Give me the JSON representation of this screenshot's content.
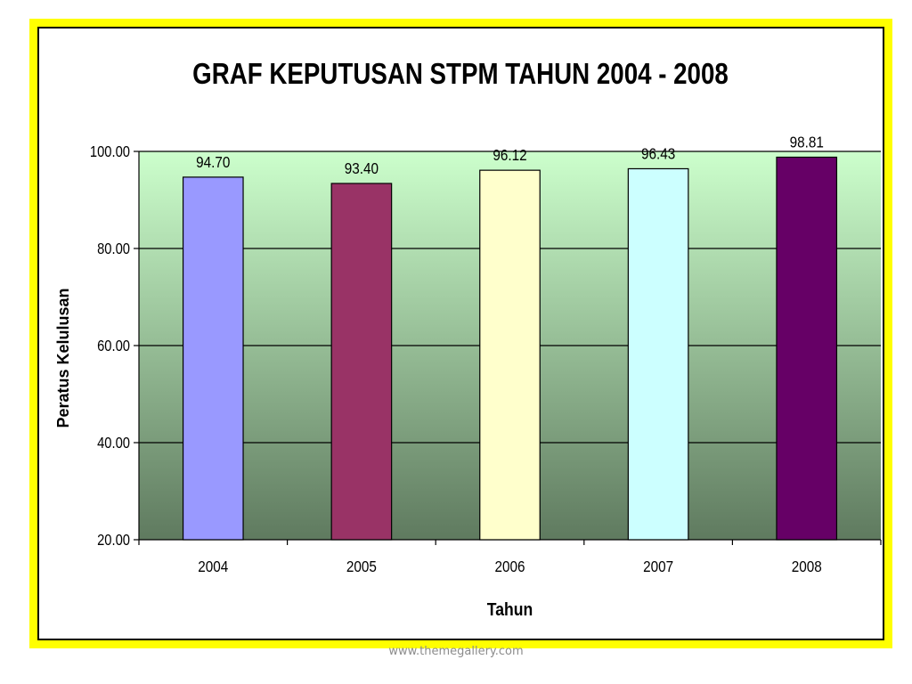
{
  "footer": {
    "credit": "www.themegallery.com"
  },
  "chart_data": {
    "type": "bar",
    "title": "GRAF KEPUTUSAN STPM TAHUN 2004 - 2008",
    "xlabel": "Tahun",
    "ylabel": "Peratus Kelulusan",
    "categories": [
      "2004",
      "2005",
      "2006",
      "2007",
      "2008"
    ],
    "values": [
      94.7,
      93.4,
      96.12,
      96.43,
      98.81
    ],
    "value_labels": [
      "94.70",
      "93.40",
      "96.12",
      "96.43",
      "98.81"
    ],
    "bar_colors": [
      "#9999ff",
      "#993366",
      "#ffffcc",
      "#ccffff",
      "#660066"
    ],
    "ylim": [
      20,
      100
    ],
    "yticks": [
      20,
      40,
      60,
      80,
      100
    ],
    "ytick_labels": [
      "20.00",
      "40.00",
      "60.00",
      "80.00",
      "100.00"
    ],
    "grid": true,
    "legend": "none",
    "plot_background": {
      "top": "#ccffcc",
      "bottom": "#5f7a5f"
    }
  }
}
